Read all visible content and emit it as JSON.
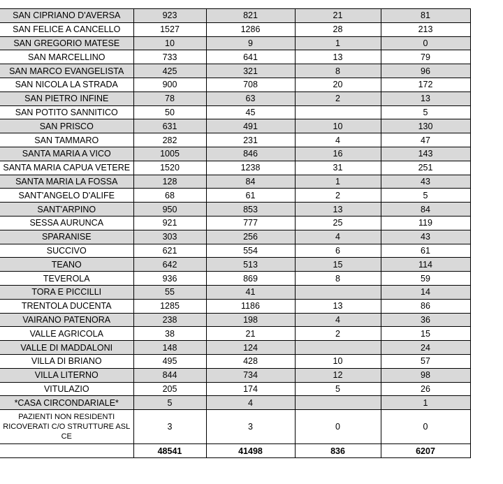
{
  "table": {
    "rows": [
      [
        "SAN CIPRIANO D'AVERSA",
        923,
        821,
        21,
        81
      ],
      [
        "SAN FELICE A CANCELLO",
        1527,
        1286,
        28,
        213
      ],
      [
        "SAN GREGORIO MATESE",
        10,
        9,
        1,
        0
      ],
      [
        "SAN MARCELLINO",
        733,
        641,
        13,
        79
      ],
      [
        "SAN MARCO EVANGELISTA",
        425,
        321,
        8,
        96
      ],
      [
        "SAN NICOLA LA STRADA",
        900,
        708,
        20,
        172
      ],
      [
        "SAN PIETRO INFINE",
        78,
        63,
        2,
        13
      ],
      [
        "SAN POTITO SANNITICO",
        50,
        45,
        null,
        5
      ],
      [
        "SAN PRISCO",
        631,
        491,
        10,
        130
      ],
      [
        "SAN TAMMARO",
        282,
        231,
        4,
        47
      ],
      [
        "SANTA MARIA A VICO",
        1005,
        846,
        16,
        143
      ],
      [
        "SANTA MARIA CAPUA VETERE",
        1520,
        1238,
        31,
        251
      ],
      [
        "SANTA MARIA LA FOSSA",
        128,
        84,
        1,
        43
      ],
      [
        "SANT'ANGELO D'ALIFE",
        68,
        61,
        2,
        5
      ],
      [
        "SANT'ARPINO",
        950,
        853,
        13,
        84
      ],
      [
        "SESSA AURUNCA",
        921,
        777,
        25,
        119
      ],
      [
        "SPARANISE",
        303,
        256,
        4,
        43
      ],
      [
        "SUCCIVO",
        621,
        554,
        6,
        61
      ],
      [
        "TEANO",
        642,
        513,
        15,
        114
      ],
      [
        "TEVEROLA",
        936,
        869,
        8,
        59
      ],
      [
        "TORA E PICCILLI",
        55,
        41,
        null,
        14
      ],
      [
        "TRENTOLA DUCENTA",
        1285,
        1186,
        13,
        86
      ],
      [
        "VAIRANO PATENORA",
        238,
        198,
        4,
        36
      ],
      [
        "VALLE AGRICOLA",
        38,
        21,
        2,
        15
      ],
      [
        "VALLE DI MADDALONI",
        148,
        124,
        null,
        24
      ],
      [
        "VILLA DI BRIANO",
        495,
        428,
        10,
        57
      ],
      [
        "VILLA LITERNO",
        844,
        734,
        12,
        98
      ],
      [
        "VITULAZIO",
        205,
        174,
        5,
        26
      ],
      [
        "*CASA CIRCONDARIALE*",
        5,
        4,
        null,
        1
      ],
      [
        "PAZIENTI NON RESIDENTI RICOVERATI C/O STRUTTURE ASL CE",
        3,
        3,
        0,
        0
      ]
    ],
    "total": [
      null,
      48541,
      41498,
      836,
      6207
    ]
  }
}
